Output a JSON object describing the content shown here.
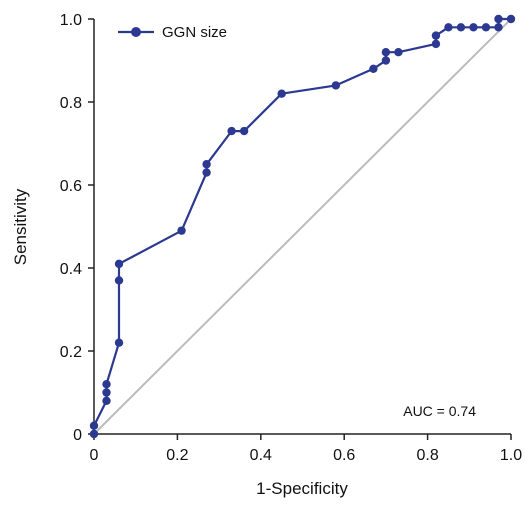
{
  "chart_data": {
    "type": "line",
    "xlabel": "1-Specificity",
    "ylabel": "Sensitivity",
    "xlim": [
      0,
      1.0
    ],
    "ylim": [
      0,
      1.0
    ],
    "xticks": [
      0,
      0.2,
      0.4,
      0.6,
      0.8,
      1.0
    ],
    "xtick_labels": [
      "0",
      "0.2",
      "0.4",
      "0.6",
      "0.8",
      "1.0"
    ],
    "yticks": [
      0,
      0.2,
      0.4,
      0.6,
      0.8,
      1.0
    ],
    "ytick_labels": [
      "0",
      "0.2",
      "0.4",
      "0.6",
      "0.8",
      "1.0"
    ],
    "grid": false,
    "legend_position": "top-left",
    "annotation": "AUC = 0.74",
    "reference_line": {
      "x": [
        0,
        1
      ],
      "y": [
        0,
        1
      ],
      "color": "#bbbbbb"
    },
    "series": [
      {
        "name": "GGN size",
        "color": "#2b3990",
        "x": [
          0,
          0,
          0.03,
          0.03,
          0.03,
          0.06,
          0.06,
          0.06,
          0.21,
          0.27,
          0.27,
          0.33,
          0.36,
          0.45,
          0.58,
          0.67,
          0.7,
          0.7,
          0.73,
          0.82,
          0.82,
          0.85,
          0.88,
          0.91,
          0.94,
          0.97,
          0.97,
          1.0
        ],
        "y": [
          0,
          0.02,
          0.08,
          0.1,
          0.12,
          0.22,
          0.37,
          0.41,
          0.49,
          0.63,
          0.65,
          0.73,
          0.73,
          0.82,
          0.84,
          0.88,
          0.9,
          0.92,
          0.92,
          0.94,
          0.96,
          0.98,
          0.98,
          0.98,
          0.98,
          0.98,
          1.0,
          1.0
        ]
      }
    ]
  }
}
